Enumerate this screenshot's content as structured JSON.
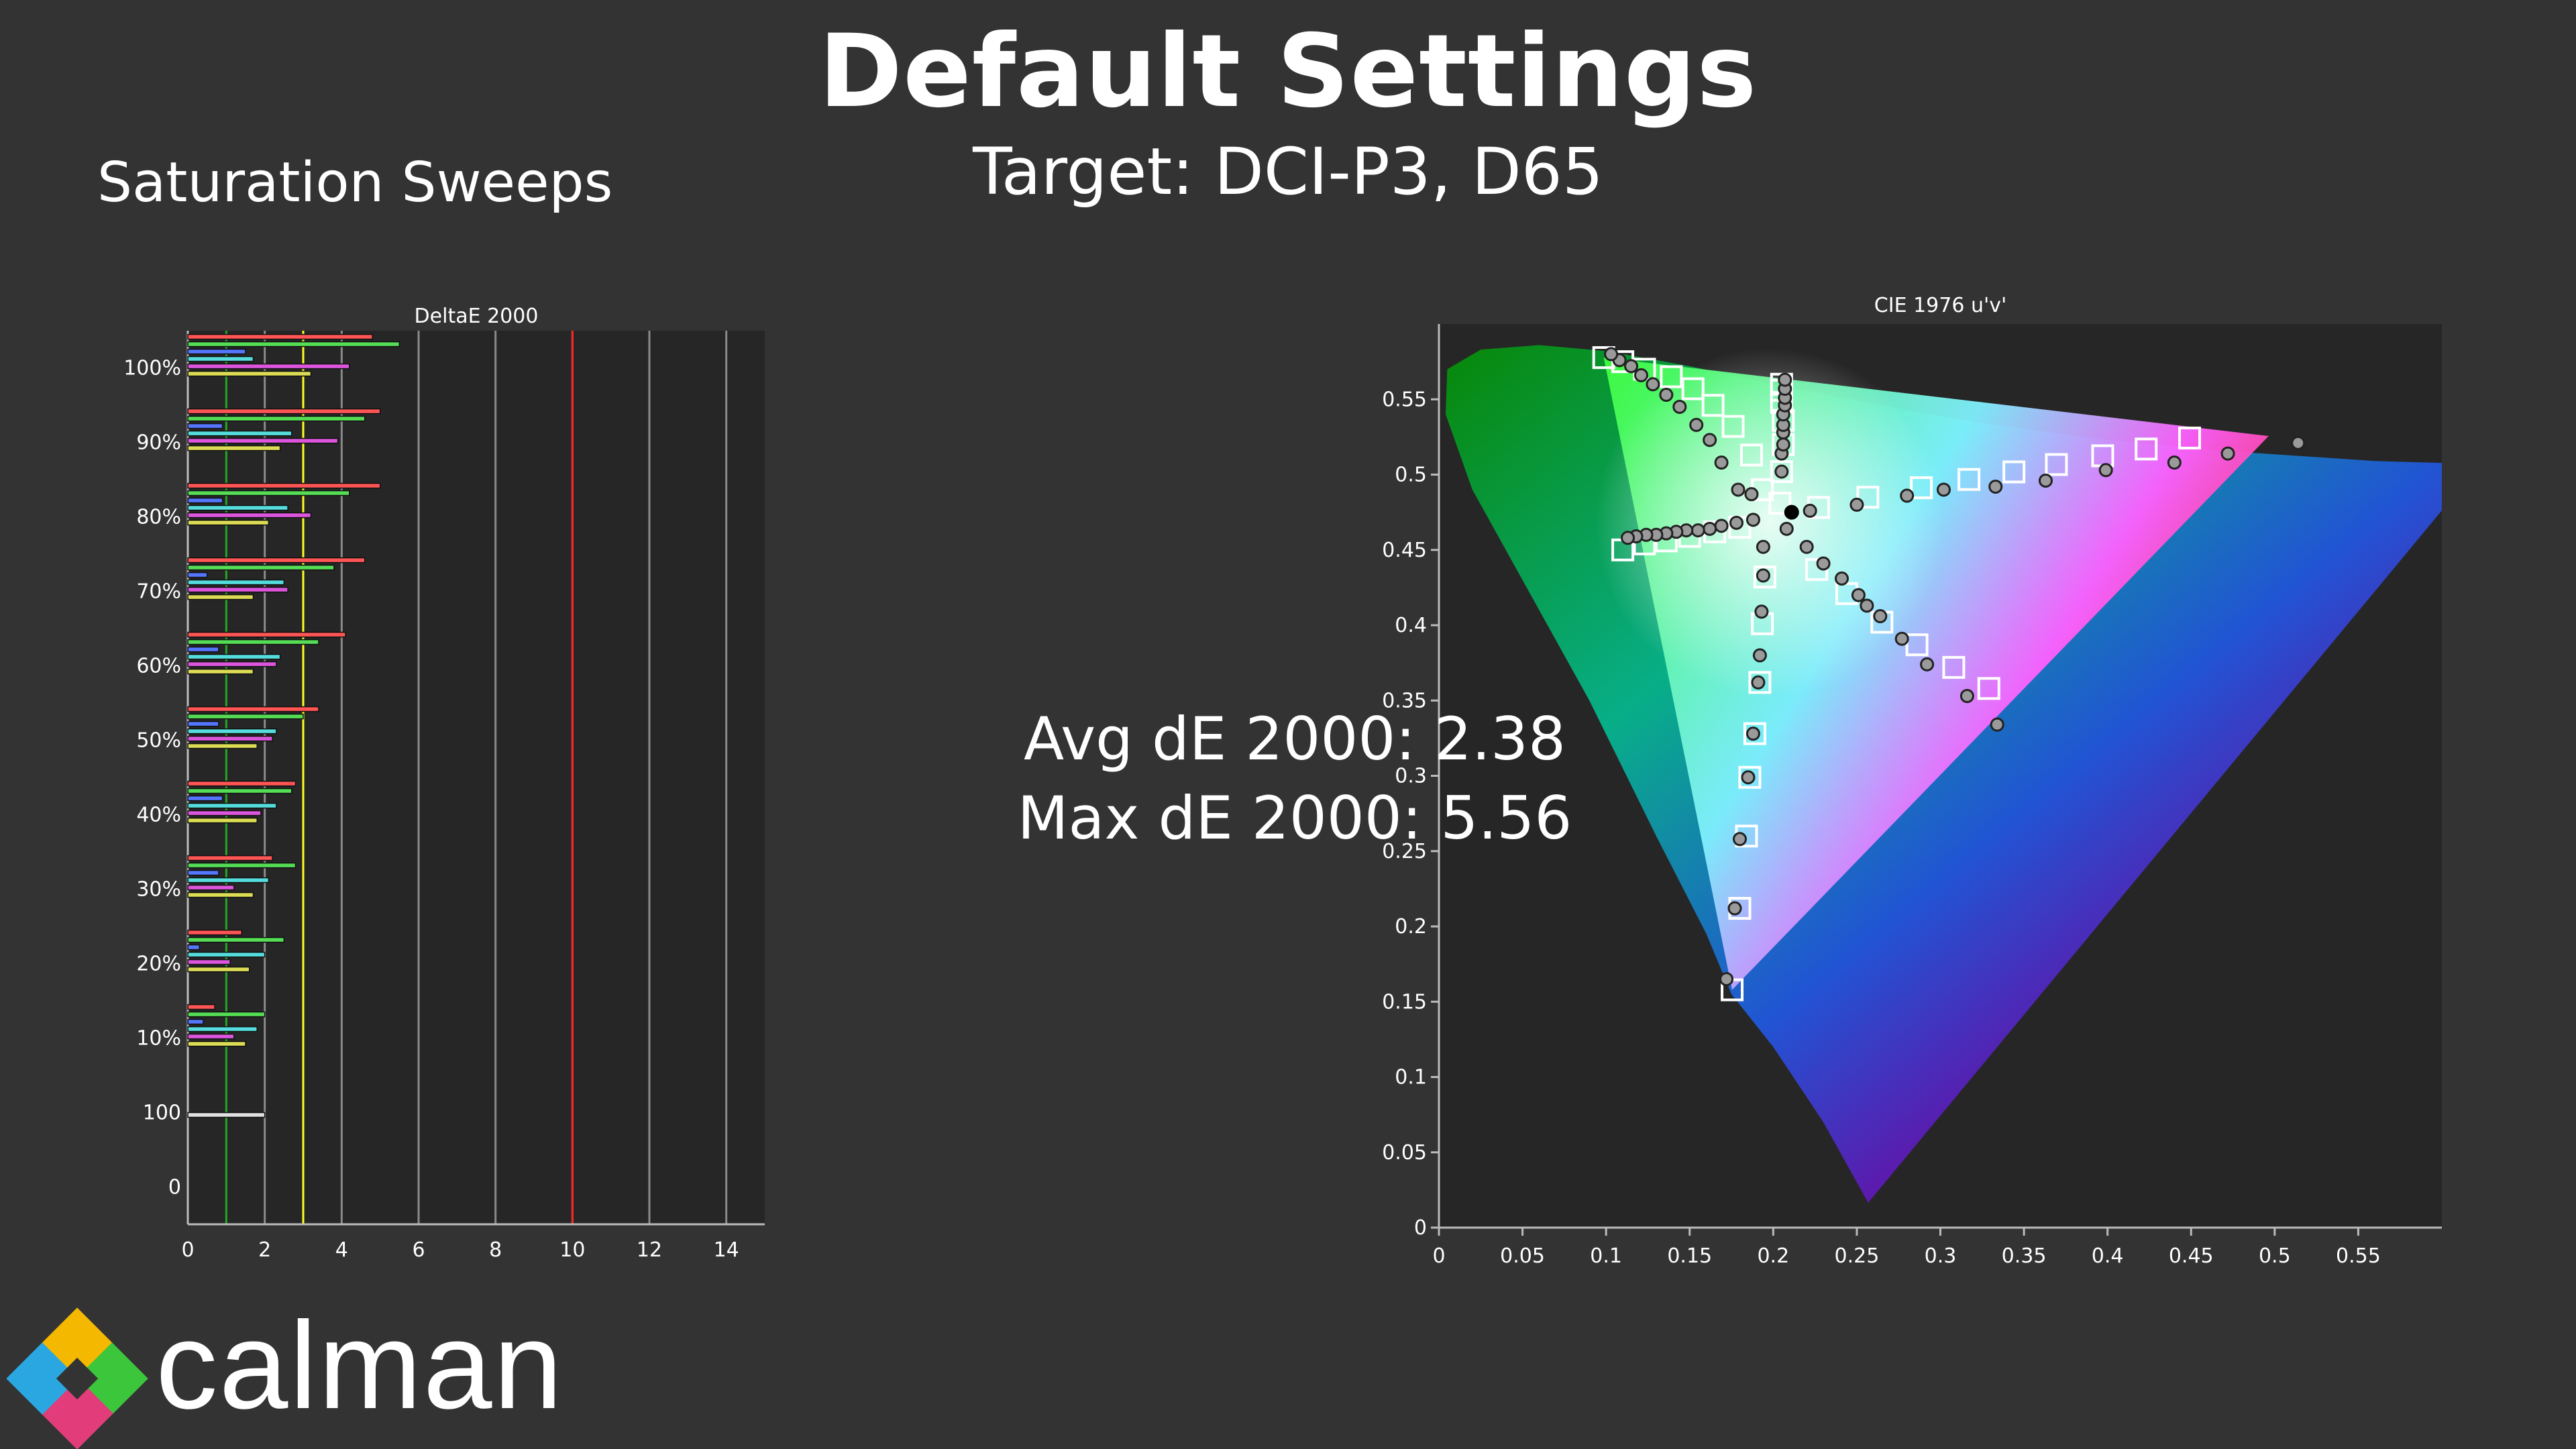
{
  "header": {
    "title": "Default Settings",
    "subtitle": "Target: DCI-P3, D65",
    "section_label": "Saturation Sweeps"
  },
  "stats": {
    "avg": "Avg dE 2000: 2.38",
    "max": "Max dE 2000: 5.56"
  },
  "brand": {
    "name": "calman"
  },
  "chart_data": [
    {
      "type": "bar",
      "orientation": "horizontal",
      "title": "DeltaE 2000",
      "xlim": [
        0,
        15
      ],
      "xticks": [
        "0",
        "2",
        "4",
        "6",
        "8",
        "10",
        "12",
        "14"
      ],
      "categories": [
        "0",
        "100",
        "10%",
        "20%",
        "30%",
        "40%",
        "50%",
        "60%",
        "70%",
        "80%",
        "90%",
        "100%"
      ],
      "thresholds": [
        {
          "value": 1,
          "color": "#22aa22"
        },
        {
          "value": 3,
          "color": "#ffff22"
        },
        {
          "value": 10,
          "color": "#ff2222"
        }
      ],
      "series": [
        {
          "color": "#ff5555",
          "values": [
            0,
            0,
            0.7,
            1.4,
            2.2,
            2.8,
            3.4,
            4.1,
            4.6,
            5.0,
            5.0,
            4.8
          ]
        },
        {
          "color": "#55dd55",
          "values": [
            0,
            0,
            2.0,
            2.5,
            2.8,
            2.7,
            3.0,
            3.4,
            3.8,
            4.2,
            4.6,
            5.5
          ]
        },
        {
          "color": "#5577ff",
          "values": [
            0,
            0,
            0.4,
            0.3,
            0.8,
            0.9,
            0.8,
            0.8,
            0.5,
            0.9,
            0.9,
            1.5
          ]
        },
        {
          "color": "#55dddd",
          "values": [
            0,
            0,
            1.8,
            2.0,
            2.1,
            2.3,
            2.3,
            2.4,
            2.5,
            2.6,
            2.7,
            1.7
          ]
        },
        {
          "color": "#dd55dd",
          "values": [
            0,
            0,
            1.2,
            1.1,
            1.2,
            1.9,
            2.2,
            2.3,
            2.6,
            3.2,
            3.9,
            4.2
          ]
        },
        {
          "color": "#dddd55",
          "values": [
            0,
            0,
            1.5,
            1.6,
            1.7,
            1.8,
            1.8,
            1.7,
            1.7,
            2.1,
            2.4,
            3.2
          ]
        },
        {
          "color": "#e0e0e0",
          "values": [
            0,
            2.0,
            0,
            0,
            0,
            0,
            0,
            0,
            0,
            0,
            0,
            0
          ]
        }
      ]
    },
    {
      "type": "scatter",
      "title": "CIE 1976 u'v'",
      "xlim": [
        0,
        0.6
      ],
      "ylim": [
        0,
        0.6
      ],
      "xticks": [
        "0",
        "0.05",
        "0.1",
        "0.15",
        "0.2",
        "0.25",
        "0.3",
        "0.35",
        "0.4",
        "0.45",
        "0.5",
        "0.55"
      ],
      "yticks": [
        "0",
        "0.05",
        "0.1",
        "0.15",
        "0.2",
        "0.25",
        "0.3",
        "0.35",
        "0.4",
        "0.45",
        "0.5",
        "0.55"
      ],
      "gamut_triangle": [
        [
          0.4964,
          0.5256
        ],
        [
          0.0986,
          0.5777
        ],
        [
          0.1754,
          0.1579
        ]
      ],
      "white_point": [
        0.1978,
        0.4683
      ],
      "targets": [
        [
          0.2271,
          0.4782
        ],
        [
          0.2566,
          0.485
        ],
        [
          0.2886,
          0.4913
        ],
        [
          0.3171,
          0.4968
        ],
        [
          0.344,
          0.5018
        ],
        [
          0.3694,
          0.5067
        ],
        [
          0.3971,
          0.5125
        ],
        [
          0.4231,
          0.517
        ],
        [
          0.4491,
          0.5243
        ],
        [
          0.1935,
          0.49
        ],
        [
          0.187,
          0.513
        ],
        [
          0.176,
          0.532
        ],
        [
          0.164,
          0.546
        ],
        [
          0.152,
          0.557
        ],
        [
          0.139,
          0.565
        ],
        [
          0.123,
          0.57
        ],
        [
          0.11,
          0.575
        ],
        [
          0.0986,
          0.5777
        ],
        [
          0.195,
          0.432
        ],
        [
          0.1935,
          0.401
        ],
        [
          0.192,
          0.362
        ],
        [
          0.189,
          0.328
        ],
        [
          0.186,
          0.299
        ],
        [
          0.184,
          0.26
        ],
        [
          0.18,
          0.212
        ],
        [
          0.1754,
          0.1579
        ],
        [
          0.204,
          0.481
        ],
        [
          0.205,
          0.502
        ],
        [
          0.206,
          0.52
        ],
        [
          0.206,
          0.536
        ],
        [
          0.205,
          0.548
        ],
        [
          0.205,
          0.556
        ],
        [
          0.205,
          0.56
        ],
        [
          0.18,
          0.465
        ],
        [
          0.165,
          0.462
        ],
        [
          0.15,
          0.459
        ],
        [
          0.136,
          0.456
        ],
        [
          0.123,
          0.454
        ],
        [
          0.11,
          0.45
        ],
        [
          0.226,
          0.437
        ],
        [
          0.244,
          0.421
        ],
        [
          0.265,
          0.402
        ],
        [
          0.286,
          0.387
        ],
        [
          0.308,
          0.372
        ],
        [
          0.329,
          0.358
        ]
      ],
      "measured": [
        [
          0.222,
          0.476
        ],
        [
          0.25,
          0.48
        ],
        [
          0.28,
          0.486
        ],
        [
          0.302,
          0.49
        ],
        [
          0.333,
          0.492
        ],
        [
          0.363,
          0.496
        ],
        [
          0.399,
          0.503
        ],
        [
          0.44,
          0.508
        ],
        [
          0.472,
          0.514
        ],
        [
          0.514,
          0.521
        ],
        [
          0.187,
          0.487
        ],
        [
          0.179,
          0.49
        ],
        [
          0.169,
          0.508
        ],
        [
          0.162,
          0.523
        ],
        [
          0.154,
          0.533
        ],
        [
          0.144,
          0.545
        ],
        [
          0.136,
          0.553
        ],
        [
          0.128,
          0.56
        ],
        [
          0.121,
          0.566
        ],
        [
          0.115,
          0.572
        ],
        [
          0.108,
          0.576
        ],
        [
          0.103,
          0.58
        ],
        [
          0.194,
          0.452
        ],
        [
          0.194,
          0.433
        ],
        [
          0.193,
          0.409
        ],
        [
          0.192,
          0.38
        ],
        [
          0.191,
          0.362
        ],
        [
          0.188,
          0.328
        ],
        [
          0.185,
          0.299
        ],
        [
          0.18,
          0.258
        ],
        [
          0.177,
          0.212
        ],
        [
          0.172,
          0.165
        ],
        [
          0.205,
          0.502
        ],
        [
          0.205,
          0.514
        ],
        [
          0.206,
          0.52
        ],
        [
          0.206,
          0.528
        ],
        [
          0.206,
          0.533
        ],
        [
          0.206,
          0.54
        ],
        [
          0.207,
          0.546
        ],
        [
          0.207,
          0.551
        ],
        [
          0.207,
          0.557
        ],
        [
          0.207,
          0.563
        ],
        [
          0.188,
          0.47
        ],
        [
          0.178,
          0.468
        ],
        [
          0.169,
          0.466
        ],
        [
          0.162,
          0.464
        ],
        [
          0.155,
          0.463
        ],
        [
          0.148,
          0.463
        ],
        [
          0.142,
          0.462
        ],
        [
          0.136,
          0.461
        ],
        [
          0.13,
          0.46
        ],
        [
          0.124,
          0.46
        ],
        [
          0.118,
          0.459
        ],
        [
          0.113,
          0.458
        ],
        [
          0.208,
          0.464
        ],
        [
          0.22,
          0.452
        ],
        [
          0.23,
          0.441
        ],
        [
          0.241,
          0.431
        ],
        [
          0.251,
          0.42
        ],
        [
          0.256,
          0.413
        ],
        [
          0.264,
          0.406
        ],
        [
          0.277,
          0.391
        ],
        [
          0.292,
          0.374
        ],
        [
          0.316,
          0.353
        ],
        [
          0.334,
          0.334
        ]
      ],
      "measured_white": [
        0.211,
        0.475
      ]
    }
  ]
}
